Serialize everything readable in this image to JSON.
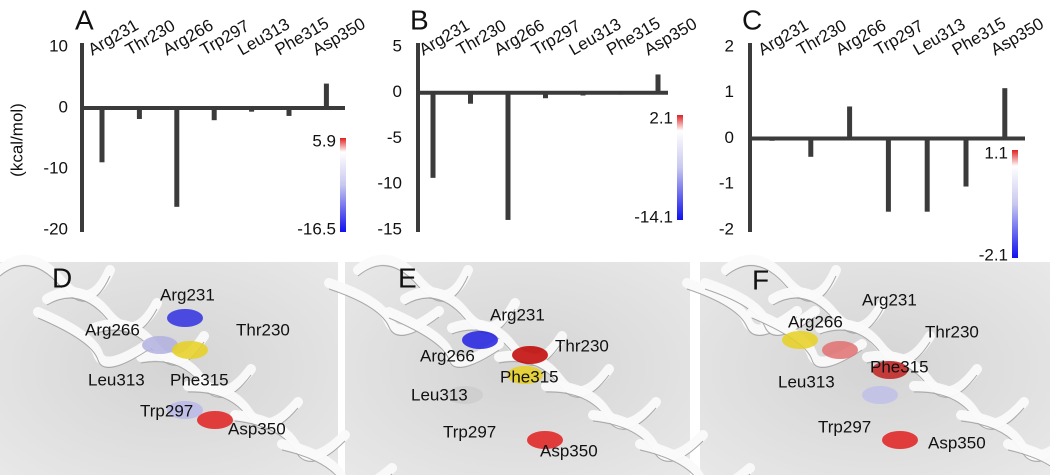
{
  "chart_data": [
    {
      "type": "bar",
      "panel": "A",
      "y_label": "(kcal/mol)",
      "categories": [
        "Arg231",
        "Thr230",
        "Arg266",
        "Trp297",
        "Leu313",
        "Phe315",
        "Asp350"
      ],
      "values": [
        -8.9,
        -1.8,
        -16.2,
        -2.0,
        -0.6,
        -1.3,
        4.0
      ],
      "color": "#3b3b3b",
      "ylim": [
        -20,
        10
      ],
      "yticks": [
        -20,
        -10,
        0,
        10
      ],
      "grid": false,
      "colorbar": {
        "max": 5.9,
        "min": -16.5
      }
    },
    {
      "type": "bar",
      "panel": "B",
      "categories": [
        "Arg231",
        "Thr230",
        "Arg266",
        "Trp297",
        "Leu313",
        "Phe315",
        "Asp350"
      ],
      "values": [
        -9.3,
        -1.2,
        -13.9,
        -0.6,
        -0.3,
        -0.2,
        2.0
      ],
      "color": "#3b3b3b",
      "ylim": [
        -15,
        5
      ],
      "yticks": [
        -15,
        -10,
        -5,
        0,
        5
      ],
      "grid": false,
      "colorbar": {
        "max": 2.1,
        "min": -14.1
      }
    },
    {
      "type": "bar",
      "panel": "C",
      "categories": [
        "Arg231",
        "Thr230",
        "Arg266",
        "Trp297",
        "Leu313",
        "Phe315",
        "Asp350"
      ],
      "values": [
        -0.05,
        -0.4,
        0.7,
        -1.6,
        -1.6,
        -1.05,
        1.1
      ],
      "color": "#3b3b3b",
      "ylim": [
        -2,
        2
      ],
      "yticks": [
        -2,
        -1,
        0,
        1,
        2
      ],
      "grid": false,
      "colorbar": {
        "max": 1.1,
        "min": -2.1
      }
    }
  ],
  "structures": [
    {
      "panel": "D",
      "residues": [
        "Arg231",
        "Arg266",
        "Thr230",
        "Leu313",
        "Phe315",
        "Trp297",
        "Asp350"
      ]
    },
    {
      "panel": "E",
      "residues": [
        "Arg231",
        "Arg266",
        "Thr230",
        "Phe315",
        "Leu313",
        "Trp297",
        "Asp350"
      ]
    },
    {
      "panel": "F",
      "residues": [
        "Arg231",
        "Arg266",
        "Thr230",
        "Phe315",
        "Leu313",
        "Trp297",
        "Asp350"
      ]
    }
  ]
}
